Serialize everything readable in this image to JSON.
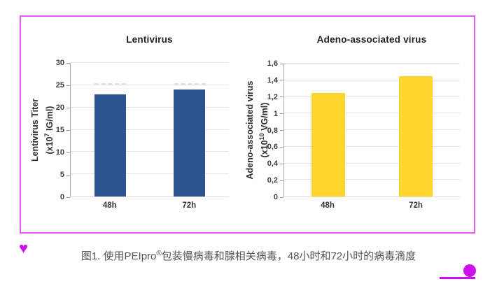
{
  "figure": {
    "frame_color": "#e65af0",
    "accent_color": "#cf10ee",
    "caption": {
      "prefix": "图1. 使用PEIpro",
      "sup": "®",
      "suffix": "包装慢病毒和腺相关病毒，48小时和72小时的病毒滴度"
    },
    "heart_glyph": "♥"
  },
  "chart_data": [
    {
      "type": "bar",
      "title": "Lentivirus",
      "categories": [
        "48h",
        "72h"
      ],
      "values": [
        23,
        24
      ],
      "ylabel": "Lentivirus Titer (x10^7 IG/ml)",
      "ylabel_lines": [
        {
          "text": "Lentivirus Titer"
        },
        {
          "prefix": "(x10",
          "sup": "7",
          "suffix": " IG/ml)"
        }
      ],
      "xlabel": "",
      "ylim": [
        0,
        30
      ],
      "yticks": [
        {
          "label": "0",
          "value": 0
        },
        {
          "label": "5",
          "value": 5
        },
        {
          "label": "10",
          "value": 10
        },
        {
          "label": "15",
          "value": 15
        },
        {
          "label": "20",
          "value": 20
        },
        {
          "label": "25",
          "value": 25
        },
        {
          "label": "30",
          "value": 30
        }
      ],
      "bar_color": "#2e5490",
      "grid": true,
      "legend": false
    },
    {
      "type": "bar",
      "title": "Adeno-associated virus",
      "categories": [
        "48h",
        "72h"
      ],
      "values": [
        1.25,
        1.45
      ],
      "ylabel": "Adeno-associated virus (x10^10 VG/ml)",
      "ylabel_lines": [
        {
          "text": "Adeno-associated virus"
        },
        {
          "prefix": "(x10",
          "sup": "10",
          "suffix": " VG/ml)"
        }
      ],
      "xlabel": "",
      "ylim": [
        0,
        1.6
      ],
      "yticks": [
        {
          "label": "0",
          "value": 0
        },
        {
          "label": "0,2",
          "value": 0.2
        },
        {
          "label": "0,4",
          "value": 0.4
        },
        {
          "label": "0,6",
          "value": 0.6
        },
        {
          "label": "0,8",
          "value": 0.8
        },
        {
          "label": "1",
          "value": 1
        },
        {
          "label": "1,2",
          "value": 1.2
        },
        {
          "label": "1,4",
          "value": 1.4
        },
        {
          "label": "1,6",
          "value": 1.6
        }
      ],
      "bar_color": "#ffd62e",
      "grid": true,
      "legend": false
    }
  ]
}
